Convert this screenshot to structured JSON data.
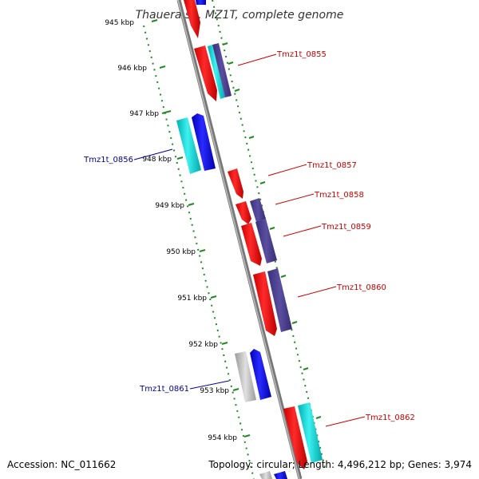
{
  "title": "Thauera sp. MZ1T, complete genome",
  "footer": {
    "accession": "Accession: NC_011662",
    "summary": "Topology: circular; Length: 4,496,212 bp; Genes: 3,974"
  },
  "ticks": [
    "945 kbp",
    "946 kbp",
    "947 kbp",
    "948 kbp",
    "949 kbp",
    "950 kbp",
    "951 kbp",
    "952 kbp",
    "953 kbp",
    "954 kbp"
  ],
  "gene_labels": [
    {
      "text": "Tmz1t_0855",
      "color": "#cc0000"
    },
    {
      "text": "Tmz1t_0856",
      "color": "#000099"
    },
    {
      "text": "Tmz1t_0857",
      "color": "#cc0000"
    },
    {
      "text": "Tmz1t_0858",
      "color": "#cc0000"
    },
    {
      "text": "Tmz1t_0859",
      "color": "#cc0000"
    },
    {
      "text": "Tmz1t_0860",
      "color": "#cc0000"
    },
    {
      "text": "Tmz1t_0861",
      "color": "#000099"
    },
    {
      "text": "Tmz1t_0862",
      "color": "#cc0000"
    }
  ],
  "colors": {
    "forward_cds": "#ff0000",
    "reverse_cds": "#0000ff",
    "cog_purple": "#4b3f8f",
    "cog_cyan": "#00d5d5",
    "cog_gray": "#bbbbbb",
    "backbone": "#888888",
    "tick_green": "#228822"
  }
}
